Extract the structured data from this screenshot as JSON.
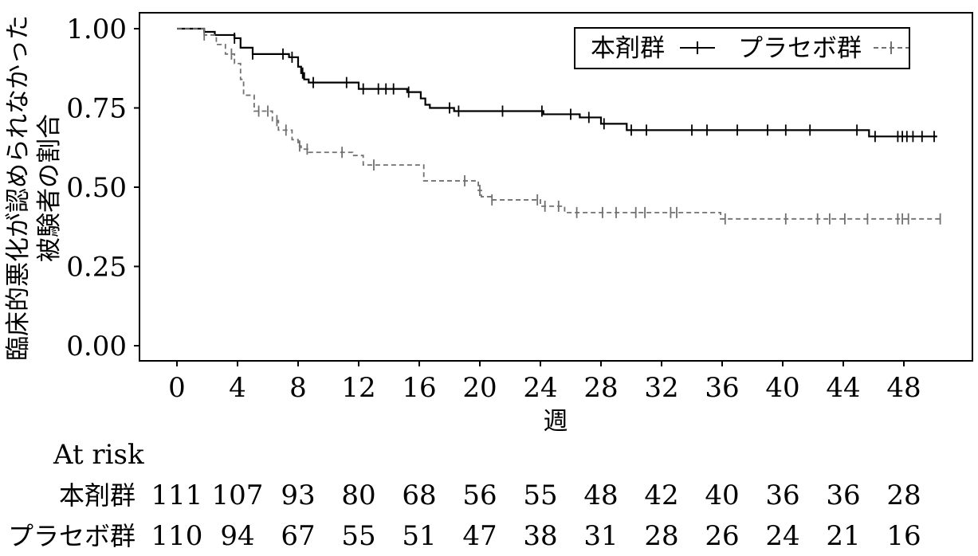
{
  "chart_data": {
    "type": "line",
    "subtype": "kaplan-meier step curve with censor marks",
    "xlabel": "週",
    "ylabel_line1": "臨床的悪化が認められなかった",
    "ylabel_line2": "被験者の割合",
    "xlim": [
      -2,
      51
    ],
    "ylim": [
      -0.05,
      1.05
    ],
    "x_ticks": [
      0,
      4,
      8,
      12,
      16,
      20,
      24,
      28,
      32,
      36,
      40,
      44,
      48
    ],
    "x_tick_labels": [
      "0",
      "4",
      "8",
      "12",
      "16",
      "20",
      "24",
      "28",
      "32",
      "36",
      "40",
      "44",
      "48"
    ],
    "y_ticks": [
      0,
      0.25,
      0.5,
      0.75,
      1.0
    ],
    "y_tick_labels": [
      "0.00",
      "0.25",
      "0.50",
      "0.75",
      "1.00"
    ],
    "grid": false,
    "legend_position": "top-right",
    "series": [
      {
        "name": "本剤群",
        "style": "solid",
        "color": "#000000",
        "steps": [
          [
            0,
            1.0
          ],
          [
            1.8,
            0.99
          ],
          [
            2.5,
            0.98
          ],
          [
            3.8,
            0.97
          ],
          [
            4.2,
            0.94
          ],
          [
            5.0,
            0.92
          ],
          [
            7.4,
            0.91
          ],
          [
            8.0,
            0.88
          ],
          [
            8.2,
            0.86
          ],
          [
            8.4,
            0.84
          ],
          [
            8.7,
            0.83
          ],
          [
            12.0,
            0.81
          ],
          [
            15.2,
            0.8
          ],
          [
            16.1,
            0.78
          ],
          [
            16.4,
            0.76
          ],
          [
            16.7,
            0.75
          ],
          [
            18.3,
            0.74
          ],
          [
            24.2,
            0.73
          ],
          [
            26.6,
            0.72
          ],
          [
            28.0,
            0.7
          ],
          [
            29.7,
            0.68
          ],
          [
            45.7,
            0.66
          ],
          [
            50.2,
            0.66
          ]
        ],
        "censor_x": [
          3.8,
          5.0,
          7.0,
          7.6,
          8.3,
          9.0,
          11.2,
          12.3,
          13.3,
          13.8,
          14.3,
          15.3,
          18.0,
          18.6,
          21.5,
          24.1,
          26.0,
          27.2,
          28.2,
          30.0,
          31.0,
          34.0,
          35.0,
          37.0,
          39.0,
          40.2,
          41.8,
          44.9,
          46.1,
          47.6,
          47.9,
          48.2,
          48.6,
          49.2,
          50.0
        ]
      },
      {
        "name": "プラセボ群",
        "style": "dashed",
        "color": "#707070",
        "steps": [
          [
            0,
            1.0
          ],
          [
            1.8,
            0.98
          ],
          [
            2.6,
            0.95
          ],
          [
            3.2,
            0.92
          ],
          [
            3.8,
            0.89
          ],
          [
            4.2,
            0.84
          ],
          [
            4.4,
            0.79
          ],
          [
            5.1,
            0.74
          ],
          [
            6.3,
            0.71
          ],
          [
            6.7,
            0.68
          ],
          [
            7.6,
            0.65
          ],
          [
            8.0,
            0.63
          ],
          [
            8.2,
            0.62
          ],
          [
            8.7,
            0.61
          ],
          [
            11.6,
            0.6
          ],
          [
            12.3,
            0.57
          ],
          [
            16.3,
            0.52
          ],
          [
            19.9,
            0.49
          ],
          [
            20.1,
            0.47
          ],
          [
            20.8,
            0.46
          ],
          [
            24.0,
            0.44
          ],
          [
            25.6,
            0.42
          ],
          [
            35.9,
            0.4
          ],
          [
            50.4,
            0.4
          ]
        ],
        "censor_x": [
          1.8,
          3.6,
          5.4,
          6.0,
          6.6,
          7.2,
          8.1,
          8.6,
          10.9,
          13.0,
          19.0,
          20.0,
          20.8,
          23.8,
          24.3,
          25.2,
          26.4,
          28.1,
          29.0,
          30.3,
          30.9,
          32.6,
          33.0,
          36.2,
          40.2,
          42.3,
          43.1,
          44.1,
          45.6,
          47.6,
          47.9,
          48.3,
          50.4
        ]
      }
    ],
    "at_risk": {
      "title": "At risk",
      "rows": [
        {
          "label": "本剤群",
          "values": [
            "111",
            "107",
            "93",
            "80",
            "68",
            "56",
            "55",
            "48",
            "42",
            "40",
            "36",
            "36",
            "28"
          ]
        },
        {
          "label": "プラセボ群",
          "values": [
            "110",
            "94",
            "67",
            "55",
            "51",
            "47",
            "38",
            "31",
            "28",
            "26",
            "24",
            "21",
            "16"
          ]
        }
      ]
    }
  }
}
